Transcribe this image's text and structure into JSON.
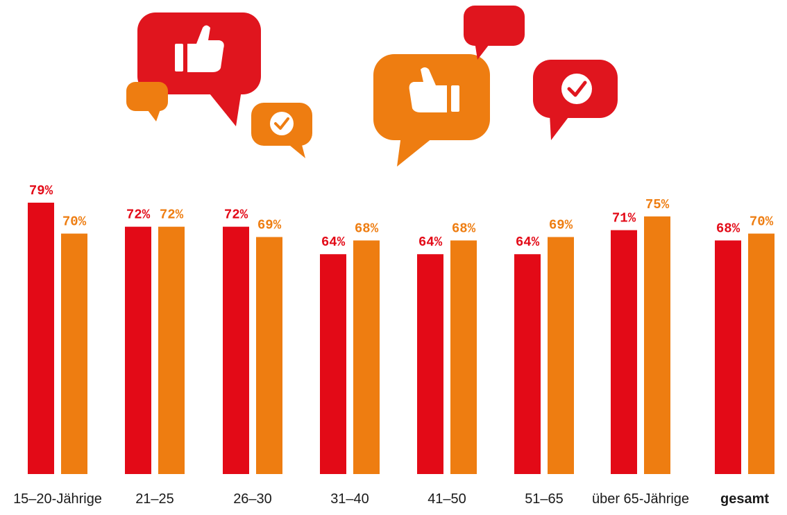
{
  "colors": {
    "series_a": "#e30a17",
    "series_b": "#ee7d11",
    "icon_red": "#e0151e",
    "icon_orange": "#ee7d11",
    "icon_white": "#ffffff"
  },
  "icons": [
    "thumbs-up-speech-bubble-icon",
    "small-speech-bubble-icon",
    "check-speech-bubble-icon",
    "thumbs-up-speech-bubble-icon",
    "speech-bubble-icon",
    "check-speech-bubble-icon"
  ],
  "chart_data": {
    "type": "bar",
    "categories": [
      "15–20-Jährige",
      "21–25",
      "26–30",
      "31–40",
      "41–50",
      "51–65",
      "über 65-Jährige",
      "gesamt"
    ],
    "series": [
      {
        "values": [
          79,
          72,
          72,
          64,
          64,
          64,
          71,
          68
        ],
        "labels": [
          "79%",
          "72%",
          "72%",
          "64%",
          "64%",
          "64%",
          "71%",
          "68%"
        ]
      },
      {
        "values": [
          70,
          72,
          69,
          68,
          68,
          69,
          75,
          70
        ],
        "labels": [
          "70%",
          "72%",
          "69%",
          "68%",
          "68%",
          "69%",
          "75%",
          "70%"
        ]
      }
    ],
    "ylim": [
      0,
      100
    ],
    "grid": false,
    "legend": "none",
    "bold_category": "gesamt"
  }
}
